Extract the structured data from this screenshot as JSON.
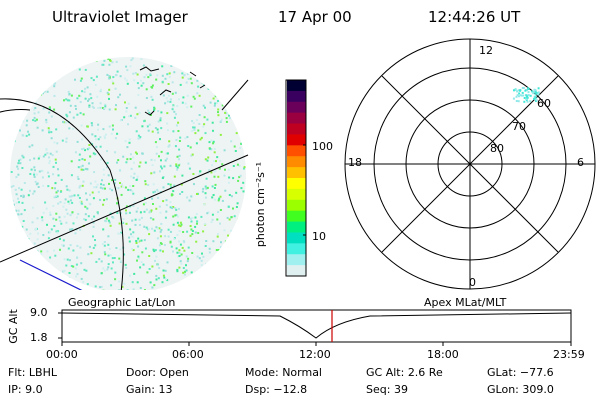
{
  "header": {
    "instrument": "Ultraviolet Imager",
    "date": "17 Apr 00",
    "time": "12:44:26 UT"
  },
  "colorbar": {
    "label": "photon cm⁻²s⁻¹",
    "ticks": [
      "100",
      "10"
    ],
    "colors": [
      "#000033",
      "#3a0060",
      "#6a005a",
      "#9a0040",
      "#c00020",
      "#e00000",
      "#ff5000",
      "#ff8c00",
      "#ffc000",
      "#ffff00",
      "#d8ff00",
      "#9cff00",
      "#40ff20",
      "#00f080",
      "#00e0c0",
      "#40f0e0",
      "#a0f0f0",
      "#e0f0f0"
    ]
  },
  "polar": {
    "lat_labels": [
      "60",
      "70",
      "80"
    ],
    "mlt_labels": {
      "top": "12",
      "bottom": "0",
      "left": "18",
      "right": "6"
    }
  },
  "timeline": {
    "left_title": "Geographic Lat/Lon",
    "right_title": "Apex  MLat/MLT",
    "y_axis_label": "GC Alt",
    "y_ticks": [
      "9.0",
      "1.8"
    ],
    "x_ticks": [
      "00:00",
      "06:00",
      "12:00",
      "18:00",
      "23:59"
    ],
    "current_marker_color": "#cc0000"
  },
  "info": {
    "filter": {
      "label": "Flt:",
      "value": "LBHL"
    },
    "ip": {
      "label": "IP:",
      "value": "9.0"
    },
    "door": {
      "label": "Door:",
      "value": "Open"
    },
    "gain": {
      "label": "Gain:",
      "value": "13"
    },
    "mode": {
      "label": "Mode:",
      "value": "Normal"
    },
    "dsp": {
      "label": "Dsp:",
      "value": "−12.8"
    },
    "gc_alt": {
      "label": "GC Alt:",
      "value": "2.6 Re"
    },
    "seq": {
      "label": "Seq:",
      "value": "39"
    },
    "glat": {
      "label": "GLat:",
      "value": "−77.6"
    },
    "glon": {
      "label": "GLon:",
      "value": "309.0"
    }
  }
}
